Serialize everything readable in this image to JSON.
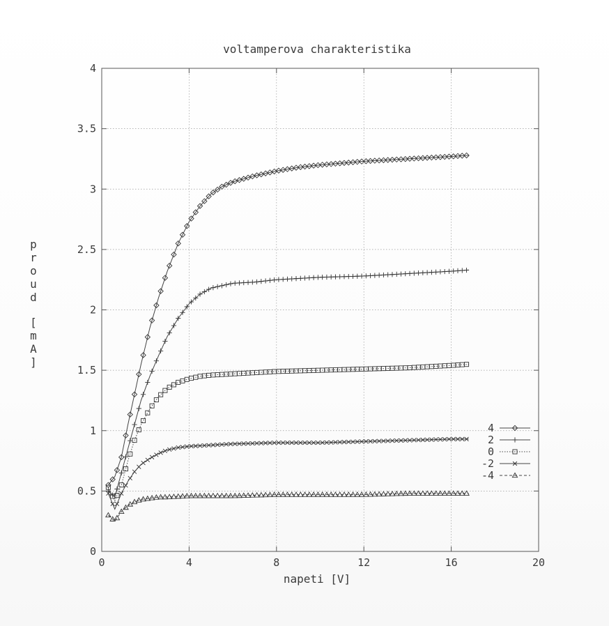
{
  "chart_data": {
    "type": "line",
    "title": "voltamperova charakteristika",
    "xlabel": "napeti [V]",
    "ylabel": "proud [mA]",
    "xlim": [
      0,
      20
    ],
    "ylim": [
      0,
      4
    ],
    "xticks": [
      0,
      4,
      8,
      12,
      16,
      20
    ],
    "yticks": [
      0,
      0.5,
      1,
      1.5,
      2,
      2.5,
      3,
      3.5,
      4
    ],
    "grid": true,
    "legend_position": "right",
    "series": [
      {
        "name": "4",
        "marker": "diamond",
        "line": "solid",
        "x": [
          0.3,
          0.6,
          0.9,
          1.2,
          1.5,
          1.8,
          2.2,
          2.6,
          3.0,
          3.5,
          4.0,
          4.5,
          5.0,
          5.5,
          6.0,
          7.0,
          8.0,
          9.0,
          10.0,
          12.0,
          14.0,
          16.0,
          16.8
        ],
        "y": [
          0.55,
          0.62,
          0.78,
          1.05,
          1.3,
          1.55,
          1.85,
          2.1,
          2.32,
          2.55,
          2.73,
          2.86,
          2.96,
          3.02,
          3.06,
          3.11,
          3.15,
          3.18,
          3.2,
          3.23,
          3.25,
          3.27,
          3.28
        ]
      },
      {
        "name": "2",
        "marker": "plus",
        "line": "solid",
        "x": [
          0.3,
          0.6,
          0.9,
          1.2,
          1.5,
          1.8,
          2.2,
          2.6,
          3.0,
          3.5,
          4.0,
          4.5,
          5.0,
          5.5,
          6.0,
          7.0,
          8.0,
          10.0,
          12.0,
          14.0,
          16.0,
          16.8
        ],
        "y": [
          0.5,
          0.45,
          0.65,
          0.85,
          1.05,
          1.25,
          1.45,
          1.62,
          1.78,
          1.93,
          2.05,
          2.13,
          2.18,
          2.2,
          2.22,
          2.23,
          2.25,
          2.27,
          2.28,
          2.3,
          2.32,
          2.33
        ]
      },
      {
        "name": "0",
        "marker": "square",
        "line": "dotted",
        "x": [
          0.3,
          0.6,
          0.9,
          1.2,
          1.5,
          1.8,
          2.2,
          2.6,
          3.0,
          3.5,
          4.0,
          4.5,
          5.0,
          6.0,
          7.0,
          8.0,
          10.0,
          12.0,
          14.0,
          16.0,
          16.8
        ],
        "y": [
          0.53,
          0.42,
          0.55,
          0.75,
          0.92,
          1.05,
          1.18,
          1.28,
          1.35,
          1.4,
          1.43,
          1.45,
          1.46,
          1.47,
          1.48,
          1.49,
          1.5,
          1.51,
          1.52,
          1.54,
          1.55
        ]
      },
      {
        "name": "-2",
        "marker": "cross",
        "line": "solid",
        "x": [
          0.3,
          0.6,
          0.9,
          1.2,
          1.5,
          1.8,
          2.2,
          2.6,
          3.0,
          3.5,
          4.0,
          5.0,
          6.0,
          8.0,
          10.0,
          12.0,
          14.0,
          16.0,
          16.8
        ],
        "y": [
          0.48,
          0.35,
          0.48,
          0.58,
          0.66,
          0.72,
          0.77,
          0.81,
          0.84,
          0.86,
          0.87,
          0.88,
          0.89,
          0.9,
          0.9,
          0.91,
          0.92,
          0.93,
          0.93
        ]
      },
      {
        "name": "-4",
        "marker": "triangle",
        "line": "dashed",
        "x": [
          0.3,
          0.6,
          0.9,
          1.2,
          1.5,
          1.8,
          2.2,
          2.6,
          3.0,
          4.0,
          5.0,
          6.0,
          8.0,
          10.0,
          12.0,
          14.0,
          16.0,
          16.8
        ],
        "y": [
          0.3,
          0.25,
          0.33,
          0.38,
          0.41,
          0.43,
          0.44,
          0.45,
          0.45,
          0.46,
          0.46,
          0.46,
          0.47,
          0.47,
          0.47,
          0.48,
          0.48,
          0.48
        ]
      }
    ]
  }
}
